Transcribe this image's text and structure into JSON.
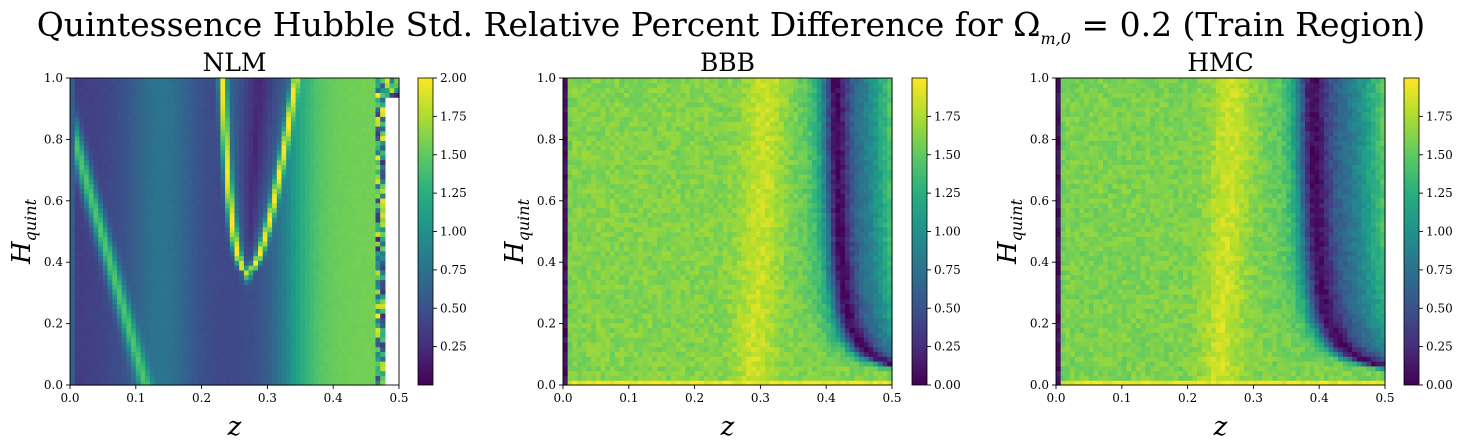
{
  "chart_data": {
    "title": "Quintessence Hubble Std. Relative Percent Difference for Ω",
    "title_sub": "m,0",
    "title_tail": " = 0.2 (Train Region)",
    "panels": [
      {
        "type": "heatmap",
        "title": "NLM",
        "xlabel": "z",
        "ylabel_main": "H",
        "ylabel_sub": "quint",
        "xlim": [
          0.0,
          0.5
        ],
        "ylim": [
          0.0,
          1.0
        ],
        "xticks": [
          "0.0",
          "0.1",
          "0.2",
          "0.3",
          "0.4",
          "0.5"
        ],
        "yticks": [
          "0.0",
          "0.2",
          "0.4",
          "0.6",
          "0.8",
          "1.0"
        ],
        "colorbar_range": [
          0.0,
          2.0
        ],
        "colorbar_ticks": [
          "0.25",
          "0.50",
          "0.75",
          "1.00",
          "1.25",
          "1.50",
          "1.75",
          "2.00"
        ],
        "colormap": "viridis",
        "pattern": "nlm"
      },
      {
        "type": "heatmap",
        "title": "BBB",
        "xlabel": "z",
        "ylabel_main": "H",
        "ylabel_sub": "quint",
        "xlim": [
          0.0,
          0.5
        ],
        "ylim": [
          0.0,
          1.0
        ],
        "xticks": [
          "0.0",
          "0.1",
          "0.2",
          "0.3",
          "0.4",
          "0.5"
        ],
        "yticks": [
          "0.0",
          "0.2",
          "0.4",
          "0.6",
          "0.8",
          "1.0"
        ],
        "colorbar_range": [
          0.0,
          2.0
        ],
        "colorbar_ticks": [
          "0.00",
          "0.25",
          "0.50",
          "0.75",
          "1.00",
          "1.25",
          "1.50",
          "1.75"
        ],
        "colormap": "viridis",
        "pattern": "bbb"
      },
      {
        "type": "heatmap",
        "title": "HMC",
        "xlabel": "z",
        "ylabel_main": "H",
        "ylabel_sub": "quint",
        "xlim": [
          0.0,
          0.5
        ],
        "ylim": [
          0.0,
          1.0
        ],
        "xticks": [
          "0.0",
          "0.1",
          "0.2",
          "0.3",
          "0.4",
          "0.5"
        ],
        "yticks": [
          "0.0",
          "0.2",
          "0.4",
          "0.6",
          "0.8",
          "1.0"
        ],
        "colorbar_range": [
          0.0,
          2.0
        ],
        "colorbar_ticks": [
          "0.00",
          "0.25",
          "0.50",
          "0.75",
          "1.00",
          "1.25",
          "1.50",
          "1.75"
        ],
        "colormap": "viridis",
        "pattern": "hmc"
      }
    ]
  }
}
